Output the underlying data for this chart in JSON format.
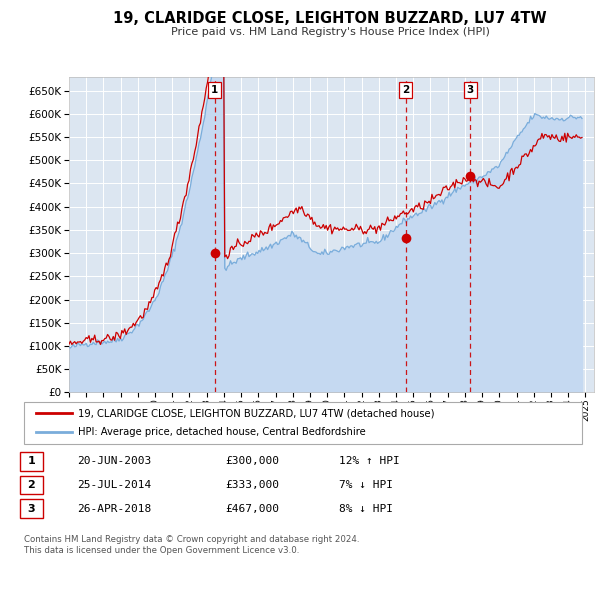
{
  "title": "19, CLARIDGE CLOSE, LEIGHTON BUZZARD, LU7 4TW",
  "subtitle": "Price paid vs. HM Land Registry's House Price Index (HPI)",
  "bg_color": "#ffffff",
  "plot_bg_color": "#dce6f1",
  "grid_color": "#ffffff",
  "sale_line_color": "#cc0000",
  "hpi_line_color": "#7aaddb",
  "hpi_fill_color": "#c5d9f1",
  "dashed_line_color": "#cc0000",
  "sale_label": "19, CLARIDGE CLOSE, LEIGHTON BUZZARD, LU7 4TW (detached house)",
  "hpi_label": "HPI: Average price, detached house, Central Bedfordshire",
  "transactions": [
    {
      "num": 1,
      "date": "20-JUN-2003",
      "price": 300000,
      "pct": "12%",
      "dir": "↑",
      "year_x": 2003.47
    },
    {
      "num": 2,
      "date": "25-JUL-2014",
      "price": 333000,
      "pct": "7%",
      "dir": "↓",
      "year_x": 2014.56
    },
    {
      "num": 3,
      "date": "26-APR-2018",
      "price": 467000,
      "pct": "8%",
      "dir": "↓",
      "year_x": 2018.32
    }
  ],
  "footnote": "Contains HM Land Registry data © Crown copyright and database right 2024.\nThis data is licensed under the Open Government Licence v3.0.",
  "ylim": [
    0,
    680000
  ],
  "xlim_start": 1995.0,
  "xlim_end": 2025.5
}
